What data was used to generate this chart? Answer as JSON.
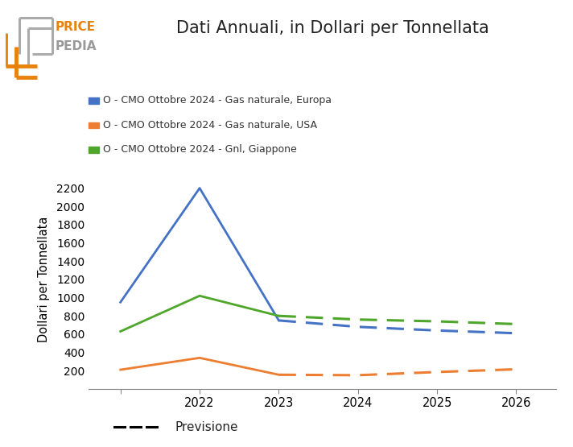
{
  "title": "Dati Annuali, in Dollari per Tonnellata",
  "ylabel": "Dollari per Tonnellata",
  "series": [
    {
      "label": "O - CMO Ottobre 2024 - Gas naturale, Europa",
      "color": "#4472c4",
      "solid_years": [
        2021,
        2022,
        2023
      ],
      "solid_values": [
        950,
        2200,
        750
      ],
      "dashed_years": [
        2023,
        2024,
        2025,
        2026
      ],
      "dashed_values": [
        750,
        680,
        640,
        610
      ]
    },
    {
      "label": "O - CMO Ottobre 2024 - Gas naturale, USA",
      "color": "#ed7d31",
      "solid_years": [
        2021,
        2022,
        2023
      ],
      "solid_values": [
        210,
        340,
        155
      ],
      "dashed_years": [
        2023,
        2024,
        2025,
        2026
      ],
      "dashed_values": [
        155,
        150,
        185,
        215
      ]
    },
    {
      "label": "O - CMO Ottobre 2024 - Gnl, Giappone",
      "color": "#4ea72a",
      "solid_years": [
        2021,
        2022,
        2023
      ],
      "solid_values": [
        630,
        1020,
        800
      ],
      "dashed_years": [
        2023,
        2024,
        2025,
        2026
      ],
      "dashed_values": [
        800,
        760,
        740,
        710
      ]
    }
  ],
  "ylim": [
    0,
    2400
  ],
  "yticks": [
    200,
    400,
    600,
    800,
    1000,
    1200,
    1400,
    1600,
    1800,
    2000,
    2200
  ],
  "xticks": [
    2021,
    2022,
    2023,
    2024,
    2025,
    2026
  ],
  "xticklabels": [
    "",
    "2022",
    "2023",
    "2024",
    "2025",
    "2026"
  ],
  "legend_previsione": "Previsione",
  "background_color": "#ffffff",
  "logo_color_price": "#e8820c",
  "logo_color_pedia": "#999999",
  "logo_color_bracket_outer": "#aaaaaa",
  "logo_color_bracket_inner": "#e8820c"
}
